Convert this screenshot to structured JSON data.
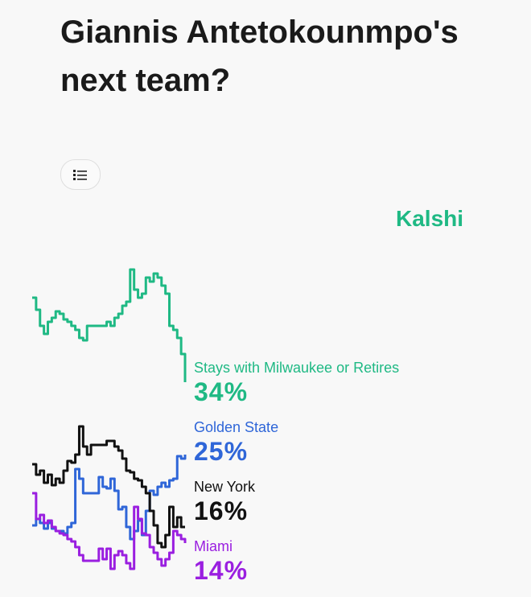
{
  "header": {
    "title": "Giannis Antetokounmpo's next team?",
    "brand": "Kalshi",
    "list_icon": "list-icon"
  },
  "chart_data": {
    "type": "line",
    "title": "",
    "xlabel": "",
    "ylabel": "",
    "grid": false,
    "ylim": [
      9,
      49
    ],
    "series": [
      {
        "name": "Stays with Milwaukee or Retires",
        "label": "34%",
        "color": "#1fb984",
        "values": [
          44.5,
          43,
          41,
          40,
          41.5,
          42,
          42.8,
          42.5,
          41.8,
          41.5,
          41,
          40.5,
          39.5,
          39.2,
          41,
          41,
          41,
          41,
          41,
          41.5,
          41,
          42,
          42.5,
          43.5,
          44,
          48,
          45.5,
          44.5,
          45,
          47,
          46.5,
          47.5,
          47,
          46,
          45,
          41,
          40.5,
          39.5,
          37.5,
          34
        ]
      },
      {
        "name": "Golden State",
        "label": "25%",
        "color": "#2f66d8",
        "values": [
          16.2,
          17,
          16.5,
          15.8,
          16.5,
          15.8,
          15.5,
          15.5,
          15.2,
          16,
          16.5,
          23.2,
          22,
          20.2,
          20.2,
          20.2,
          20.2,
          22.2,
          21,
          20.8,
          22,
          20.5,
          18.2,
          18.5,
          16,
          14.5,
          15.5,
          16.8,
          15,
          18,
          20.5,
          20,
          21,
          21.5,
          21,
          21.8,
          22,
          24.8,
          24.5,
          25
        ]
      },
      {
        "name": "New York",
        "label": "16%",
        "color": "#111111",
        "values": [
          23.8,
          22.5,
          23,
          21.5,
          22.5,
          21.2,
          22,
          21.5,
          23,
          24.2,
          24,
          25,
          28.5,
          26,
          25,
          26.2,
          26.2,
          26.2,
          26.2,
          26.7,
          26.7,
          26,
          25.5,
          24.5,
          23,
          22.8,
          22,
          21.8,
          21,
          20.2,
          18,
          16.2,
          14,
          13.5,
          15,
          18.5,
          16,
          17.2,
          16,
          16
        ]
      },
      {
        "name": "Miami",
        "label": "14%",
        "color": "#9a1fe0",
        "values": [
          20.2,
          17,
          17.5,
          16.5,
          16.8,
          16,
          15.5,
          15.2,
          15,
          14.5,
          14.2,
          13.5,
          12.5,
          11.8,
          11.8,
          11.8,
          11.8,
          13.3,
          12,
          13.3,
          10.8,
          12.5,
          13,
          12.5,
          11.5,
          10.8,
          18.5,
          17,
          15.2,
          15,
          13.5,
          12.8,
          12,
          11.2,
          12,
          12.8,
          15.5,
          15,
          14.5,
          14
        ]
      }
    ]
  }
}
